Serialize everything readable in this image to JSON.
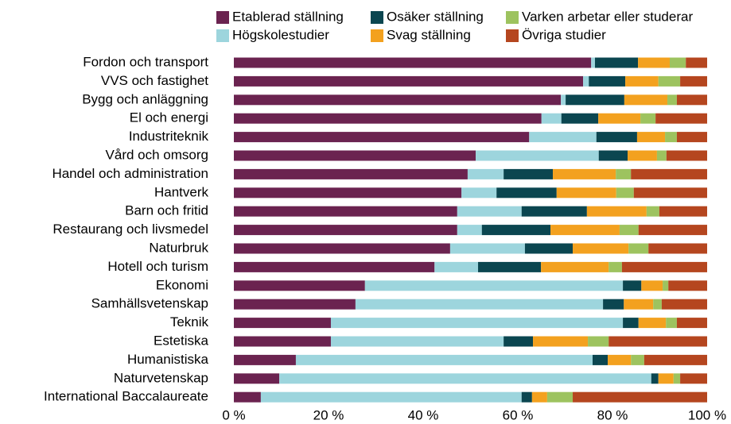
{
  "chart_data": {
    "type": "stacked_bar_horizontal",
    "categories": [
      "Fordon och transport",
      "VVS och fastighet",
      "Bygg och anläggning",
      "El och energi",
      "Industriteknik",
      "Vård och omsorg",
      "Handel och administration",
      "Hantverk",
      "Barn och fritid",
      "Restaurang och livsmedel",
      "Naturbruk",
      "Hotell och turism",
      "Ekonomi",
      "Samhällsvetenskap",
      "Teknik",
      "Estetiska",
      "Humanistiska",
      "Naturvetenskap",
      "International Baccalaureate"
    ],
    "series": [
      {
        "name": "Etablerad ställning",
        "color": "#6b2350",
        "values": [
          75.5,
          73.8,
          69.1,
          65.0,
          62.4,
          51.1,
          49.4,
          48.1,
          47.2,
          47.2,
          45.7,
          42.4,
          27.7,
          25.7,
          20.5,
          20.5,
          13.1,
          9.6,
          5.7
        ]
      },
      {
        "name": "Högskolestudier",
        "color": "#9dd5dd",
        "values": [
          0.8,
          1.2,
          1.0,
          4.2,
          14.2,
          26.0,
          7.6,
          7.4,
          13.6,
          5.2,
          15.8,
          9.2,
          54.5,
          52.3,
          61.7,
          36.5,
          62.7,
          78.6,
          55.1
        ]
      },
      {
        "name": "Osäker ställning",
        "color": "#0b4650",
        "values": [
          9.1,
          7.7,
          12.4,
          7.8,
          8.6,
          6.1,
          10.4,
          12.7,
          13.8,
          14.5,
          10.1,
          13.3,
          3.9,
          4.4,
          3.3,
          6.2,
          3.2,
          1.5,
          2.2
        ]
      },
      {
        "name": "Svag ställning",
        "color": "#f3a11f",
        "values": [
          6.7,
          7.0,
          9.1,
          8.9,
          5.9,
          6.2,
          13.3,
          12.6,
          12.6,
          14.6,
          11.8,
          14.3,
          4.5,
          6.2,
          5.8,
          11.6,
          4.9,
          3.2,
          3.2
        ]
      },
      {
        "name": "Varken arbetar eller studerar",
        "color": "#9dc35f",
        "values": [
          3.4,
          4.6,
          2.0,
          3.2,
          2.5,
          2.0,
          3.2,
          3.7,
          2.7,
          4.0,
          4.2,
          2.8,
          1.2,
          1.8,
          2.3,
          4.4,
          2.8,
          1.4,
          5.4
        ]
      },
      {
        "name": "Övriga studier",
        "color": "#b5461f",
        "values": [
          4.5,
          5.7,
          6.4,
          10.9,
          6.4,
          8.6,
          16.1,
          15.5,
          10.1,
          14.5,
          12.4,
          18.0,
          8.2,
          9.6,
          6.4,
          20.8,
          13.3,
          5.7,
          28.4
        ]
      }
    ],
    "xlim": [
      0,
      100
    ],
    "xticks": [
      {
        "value": 0,
        "label": "0 %"
      },
      {
        "value": 20,
        "label": "20 %"
      },
      {
        "value": 40,
        "label": "40 %"
      },
      {
        "value": 60,
        "label": "60 %"
      },
      {
        "value": 80,
        "label": "80 %"
      },
      {
        "value": 100,
        "label": "100 %"
      }
    ]
  }
}
